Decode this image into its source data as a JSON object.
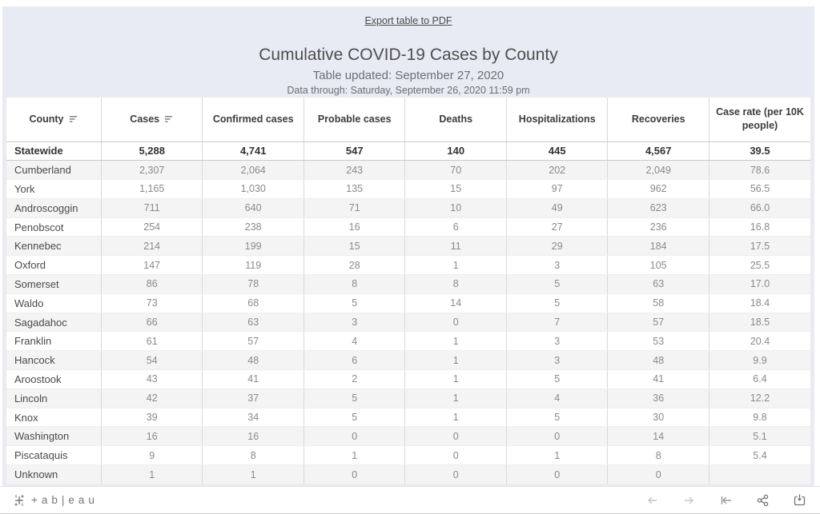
{
  "header": {
    "export_link": "Export table to PDF",
    "title": "Cumulative COVID-19 Cases by County",
    "updated_line": "Table updated: September 27, 2020",
    "data_through_line": "Data through: Saturday, September 26, 2020 11:59 pm"
  },
  "table": {
    "columns": [
      "County",
      "Cases",
      "Confirmed cases",
      "Probable cases",
      "Deaths",
      "Hospitalizations",
      "Recoveries",
      "Case rate (per 10K people)"
    ],
    "sorted_column_indices": [
      0,
      1
    ],
    "statewide": {
      "county": "Statewide",
      "values": [
        "5,288",
        "4,741",
        "547",
        "140",
        "445",
        "4,567",
        "39.5"
      ]
    },
    "rows": [
      {
        "county": "Cumberland",
        "values": [
          "2,307",
          "2,064",
          "243",
          "70",
          "202",
          "2,049",
          "78.6"
        ]
      },
      {
        "county": "York",
        "values": [
          "1,165",
          "1,030",
          "135",
          "15",
          "97",
          "962",
          "56.5"
        ]
      },
      {
        "county": "Androscoggin",
        "values": [
          "711",
          "640",
          "71",
          "10",
          "49",
          "623",
          "66.0"
        ]
      },
      {
        "county": "Penobscot",
        "values": [
          "254",
          "238",
          "16",
          "6",
          "27",
          "236",
          "16.8"
        ]
      },
      {
        "county": "Kennebec",
        "values": [
          "214",
          "199",
          "15",
          "11",
          "29",
          "184",
          "17.5"
        ]
      },
      {
        "county": "Oxford",
        "values": [
          "147",
          "119",
          "28",
          "1",
          "3",
          "105",
          "25.5"
        ]
      },
      {
        "county": "Somerset",
        "values": [
          "86",
          "78",
          "8",
          "8",
          "5",
          "63",
          "17.0"
        ]
      },
      {
        "county": "Waldo",
        "values": [
          "73",
          "68",
          "5",
          "14",
          "5",
          "58",
          "18.4"
        ]
      },
      {
        "county": "Sagadahoc",
        "values": [
          "66",
          "63",
          "3",
          "0",
          "7",
          "57",
          "18.5"
        ]
      },
      {
        "county": "Franklin",
        "values": [
          "61",
          "57",
          "4",
          "1",
          "3",
          "53",
          "20.4"
        ]
      },
      {
        "county": "Hancock",
        "values": [
          "54",
          "48",
          "6",
          "1",
          "3",
          "48",
          "9.9"
        ]
      },
      {
        "county": "Aroostook",
        "values": [
          "43",
          "41",
          "2",
          "1",
          "5",
          "41",
          "6.4"
        ]
      },
      {
        "county": "Lincoln",
        "values": [
          "42",
          "37",
          "5",
          "1",
          "4",
          "36",
          "12.2"
        ]
      },
      {
        "county": "Knox",
        "values": [
          "39",
          "34",
          "5",
          "1",
          "5",
          "30",
          "9.8"
        ]
      },
      {
        "county": "Washington",
        "values": [
          "16",
          "16",
          "0",
          "0",
          "0",
          "14",
          "5.1"
        ]
      },
      {
        "county": "Piscataquis",
        "values": [
          "9",
          "8",
          "1",
          "0",
          "1",
          "8",
          "5.4"
        ]
      },
      {
        "county": "Unknown",
        "values": [
          "1",
          "1",
          "0",
          "0",
          "0",
          "0",
          ""
        ]
      }
    ]
  },
  "footer": {
    "brand_text": "+ab|eau",
    "toolbar_icons": [
      "undo",
      "redo",
      "reset",
      "share",
      "download"
    ]
  },
  "colors": {
    "dashboard_bg": "#e8ebf4",
    "band_row_bg": "#f4f4f4",
    "grid_border": "#d9d9d9",
    "statewide_text": "#333333",
    "value_text": "#8a8a8a",
    "county_text": "#4a4a4a",
    "icon_gray": "#757575",
    "icon_disabled": "#c6c6c6"
  }
}
